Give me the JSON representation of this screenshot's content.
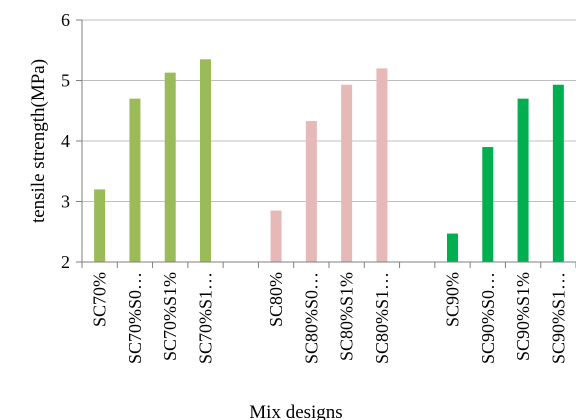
{
  "chart_data": {
    "type": "bar",
    "title": "",
    "xlabel": "Mix designs",
    "ylabel": "tensile strength(MPa)",
    "ylim": [
      2,
      6
    ],
    "yticks": [
      2,
      3,
      4,
      5,
      6
    ],
    "grid": "horizontal",
    "legend": "none",
    "categories": [
      "SC70%",
      "SC70%S0…",
      "SC70%S1%",
      "SC70%S1…",
      "",
      "SC80%",
      "SC80%S0…",
      "SC80%S1%",
      "SC80%S1…",
      "",
      "SC90%",
      "SC90%S0…",
      "SC90%S1%",
      "SC90%S1…"
    ],
    "values": [
      3.2,
      4.7,
      5.13,
      5.35,
      null,
      2.85,
      4.33,
      4.93,
      5.2,
      null,
      2.47,
      3.9,
      4.7,
      4.93
    ],
    "colors": [
      "#9bbb59",
      "#9bbb59",
      "#9bbb59",
      "#9bbb59",
      "",
      "#e6b9b8",
      "#e6b9b8",
      "#e6b9b8",
      "#e6b9b8",
      "",
      "#00b050",
      "#00b050",
      "#00b050",
      "#00b050"
    ]
  }
}
